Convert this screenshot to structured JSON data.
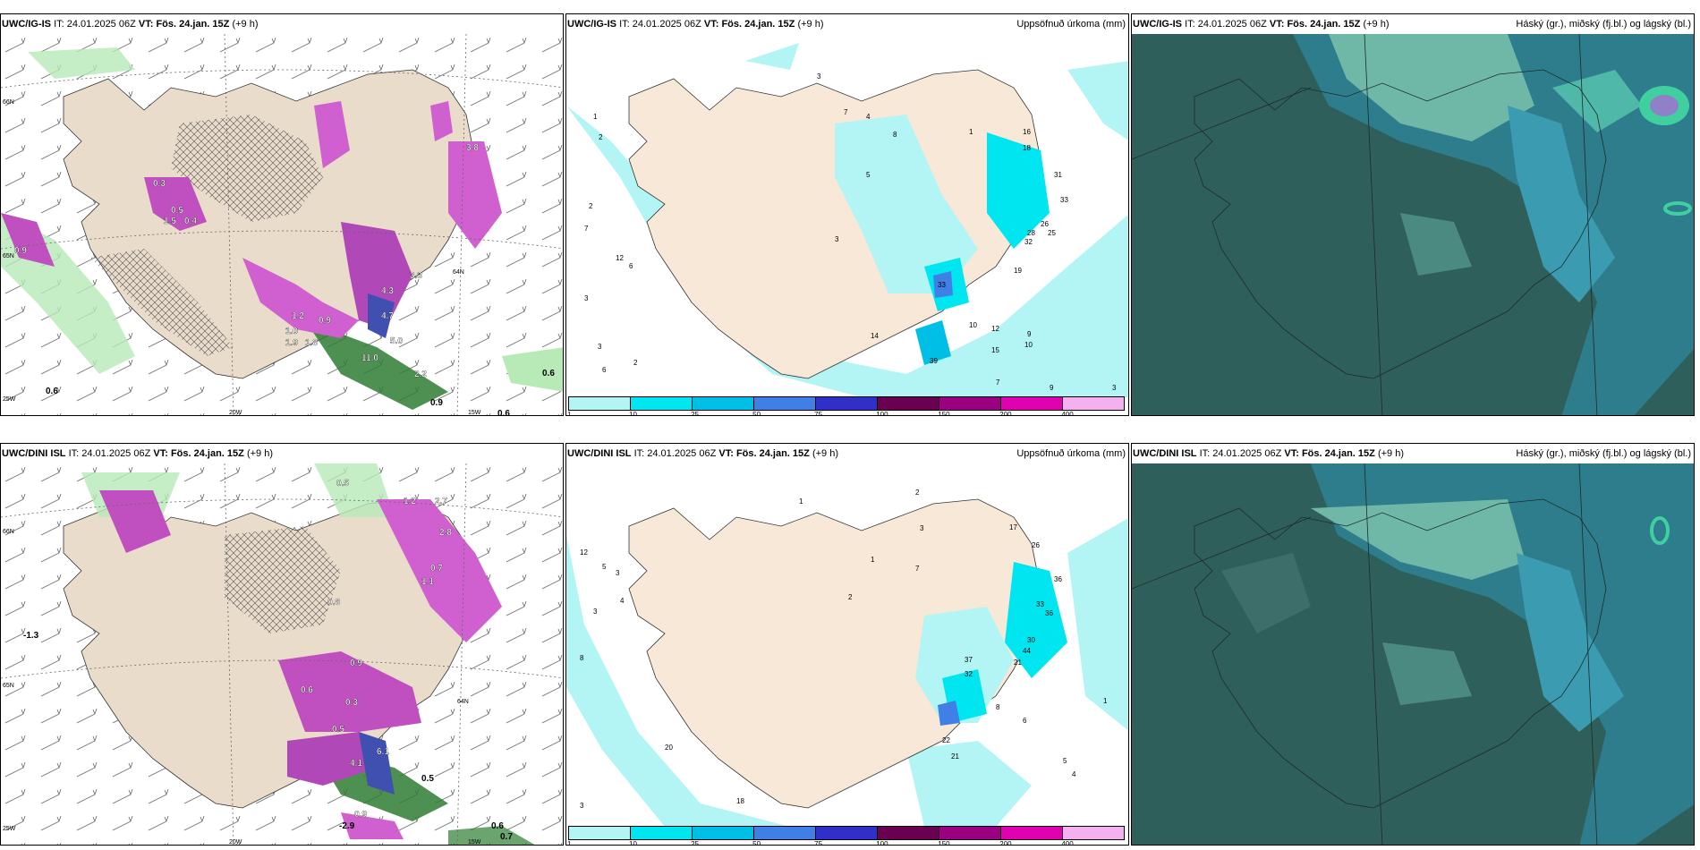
{
  "panels": [
    {
      "id": "p1",
      "model": "UWC/IG-IS",
      "it_label": "IT:",
      "it_value": "24.01.2025 06Z",
      "vt_label": "VT:",
      "vt_value": "Fös. 24.jan. 15Z",
      "lead": "(+9 h)",
      "right_title": "",
      "axis_labels": [
        "66N",
        "65N",
        "64N",
        "25W",
        "20W",
        "15W"
      ],
      "values": [
        "0.3",
        "0.5",
        "1.5",
        "0.4",
        "0.9",
        "1.2",
        "0.9",
        "1.0",
        "1.9",
        "1.8",
        "4.3",
        "4.7",
        "5.0",
        "11.0",
        "2.2",
        "3.3",
        "3.8",
        "0.6",
        "0.6",
        "0.6",
        "0.9"
      ]
    },
    {
      "id": "p2",
      "model": "UWC/IG-IS",
      "it_label": "IT:",
      "it_value": "24.01.2025 06Z",
      "vt_label": "VT:",
      "vt_value": "Fös. 24.jan. 15Z",
      "lead": "(+9 h)",
      "right_title": "Uppsöfnuð úrkoma (mm)",
      "values": [
        "3",
        "1",
        "2",
        "2",
        "7",
        "12",
        "6",
        "3",
        "3",
        "2",
        "6",
        "4",
        "7",
        "8",
        "5",
        "3",
        "1",
        "16",
        "18",
        "31",
        "33",
        "26",
        "28",
        "25",
        "32",
        "19",
        "10",
        "33",
        "12",
        "9",
        "15",
        "10",
        "39",
        "14",
        "7",
        "9",
        "3"
      ],
      "legend_ticks": [
        "1",
        "10",
        "25",
        "50",
        "75",
        "100",
        "150",
        "200",
        "400"
      ]
    },
    {
      "id": "p3",
      "model": "UWC/IG-IS",
      "it_label": "IT:",
      "it_value": "24.01.2025 06Z",
      "vt_label": "VT:",
      "vt_value": "Fös. 24.jan. 15Z",
      "lead": "(+9 h)",
      "right_title": "Háský (gr.), miðský (fj.bl.) og lágský (bl.)"
    },
    {
      "id": "p4",
      "model": "UWC/DINI ISL",
      "it_label": "IT:",
      "it_value": "24.01.2025 06Z",
      "vt_label": "VT:",
      "vt_value": "Fös. 24.jan. 15Z",
      "lead": "(+9 h)",
      "right_title": "",
      "axis_labels": [
        "66N",
        "65N",
        "64N",
        "25W",
        "20W",
        "15W"
      ],
      "values": [
        "0.5",
        "1.2",
        "2.7",
        "2.8",
        "0.7",
        "1.1",
        "0.8",
        "-1.3",
        "0.9",
        "0.6",
        "0.3",
        "0.5",
        "4.1",
        "6.1",
        "0.5",
        "0.9",
        "-2.9",
        "0.7",
        "0.6"
      ]
    },
    {
      "id": "p5",
      "model": "UWC/DINI ISL",
      "it_label": "IT:",
      "it_value": "24.01.2025 06Z",
      "vt_label": "VT:",
      "vt_value": "Fös. 24.jan. 15Z",
      "lead": "(+9 h)",
      "right_title": "Uppsöfnuð úrkoma (mm)",
      "values": [
        "1",
        "2",
        "12",
        "5",
        "3",
        "4",
        "3",
        "8",
        "2",
        "1",
        "3",
        "7",
        "17",
        "26",
        "36",
        "33",
        "36",
        "30",
        "44",
        "21",
        "37",
        "32",
        "22",
        "21",
        "8",
        "6",
        "5",
        "4",
        "1",
        "20",
        "18",
        "3"
      ],
      "legend_ticks": [
        "1",
        "10",
        "25",
        "50",
        "75",
        "100",
        "150",
        "200",
        "400"
      ]
    },
    {
      "id": "p6",
      "model": "UWC/DINI ISL",
      "it_label": "IT:",
      "it_value": "24.01.2025 06Z",
      "vt_label": "VT:",
      "vt_value": "Fös. 24.jan. 15Z",
      "lead": "(+9 h)",
      "right_title": "Háský (gr.), miðský (fj.bl.) og lágský (bl.)"
    }
  ],
  "legend_colors": [
    "#b3f5f5",
    "#00e6f0",
    "#00bfe6",
    "#3f7fe6",
    "#3030c8",
    "#6a0050",
    "#9a0080",
    "#e000b0",
    "#f5b0f0"
  ]
}
